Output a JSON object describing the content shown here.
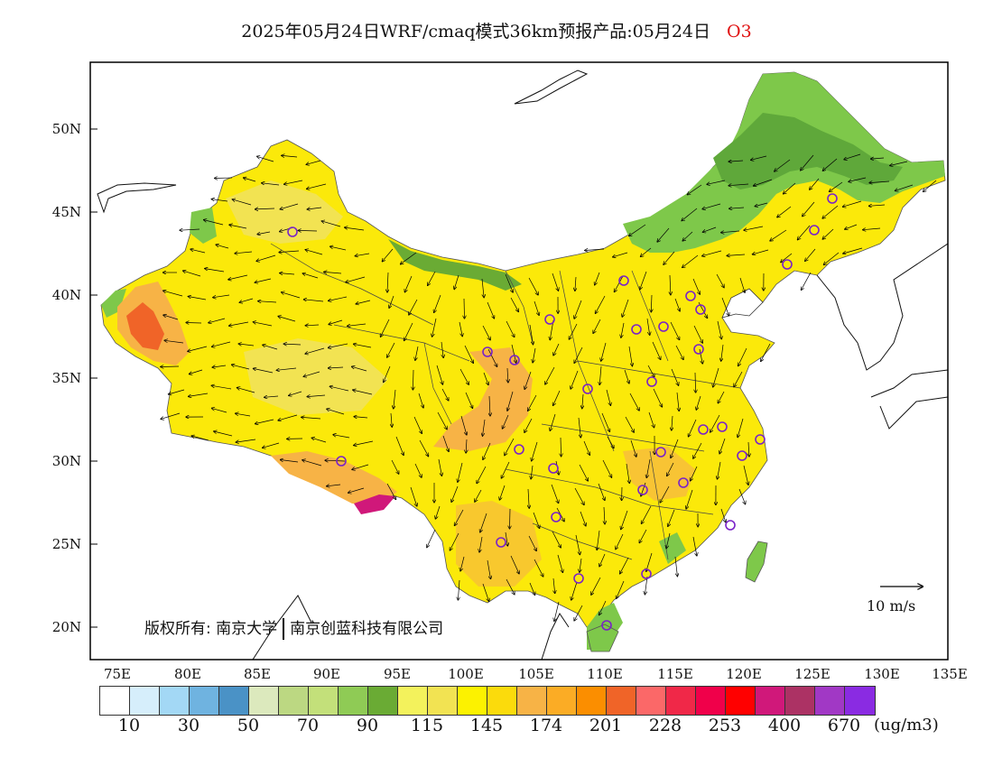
{
  "title": {
    "main": "2025年05月24日WRF/cmaq模式36km预报产品:05月24日",
    "species": "O3",
    "species_color": "#e01010"
  },
  "map": {
    "y_ticks": [
      "50N",
      "45N",
      "40N",
      "35N",
      "30N",
      "25N",
      "20N"
    ],
    "x_ticks": [
      "75E",
      "80E",
      "85E",
      "90E",
      "95E",
      "100E",
      "105E",
      "110E",
      "115E",
      "120E",
      "125E",
      "130E",
      "135E"
    ],
    "copyright_left": "版权所有: 南京大学",
    "copyright_right": "南京创蓝科技有限公司",
    "wind_scale_label": "10 m/s"
  },
  "colorbar": {
    "colors": [
      "#ffffff",
      "#d6eefb",
      "#a3d8f5",
      "#6fb3e0",
      "#4a92c6",
      "#dce9bd",
      "#bcd882",
      "#c3e07a",
      "#8fcb55",
      "#6aab34",
      "#f3f25c",
      "#f2e352",
      "#fcf200",
      "#fbdb0c",
      "#f7b346",
      "#fbac25",
      "#fb8e00",
      "#f06428",
      "#fb6868",
      "#f02848",
      "#f0004a",
      "#ff0000",
      "#d0187a",
      "#ac3264",
      "#a138c5",
      "#8a2be2"
    ],
    "labels": [
      "10",
      "30",
      "50",
      "70",
      "90",
      "115",
      "145",
      "174",
      "201",
      "228",
      "253",
      "400",
      "670"
    ],
    "unit": "(ug/m3)"
  }
}
